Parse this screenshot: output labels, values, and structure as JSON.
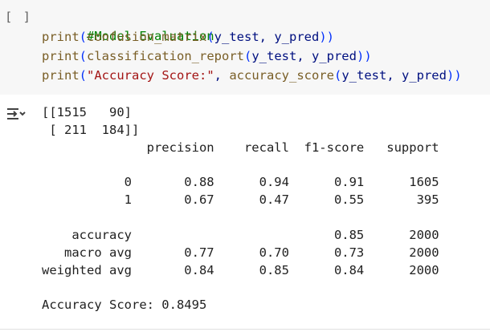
{
  "cell": {
    "run_bracket": "[ ]",
    "code": {
      "comment": "#Model Evaluation",
      "line1": {
        "fn": "print",
        "open": "(",
        "inner_fn": "confusion_matrix",
        "inner_open": "(",
        "args": "y_test, y_pred",
        "close": "))"
      },
      "line2": {
        "fn": "print",
        "open": "(",
        "inner_fn": "classification_report",
        "inner_open": "(",
        "args": "y_test, y_pred",
        "close": "))"
      },
      "line3": {
        "fn": "print",
        "open": "(",
        "string": "\"Accuracy Score:\"",
        "sep": ", ",
        "inner_fn": "accuracy_score",
        "inner_open": "(",
        "args": "y_test, y_pred",
        "close": "))"
      }
    }
  },
  "output": {
    "icon": "output-toggle-icon",
    "lines": [
      "[[1515   90]",
      " [ 211  184]]",
      "              precision    recall  f1-score   support",
      "",
      "           0       0.88      0.94      0.91      1605",
      "           1       0.67      0.47      0.55       395",
      "",
      "    accuracy                           0.85      2000",
      "   macro avg       0.77      0.70      0.73      2000",
      "weighted avg       0.84      0.85      0.84      2000",
      "",
      "Accuracy Score: 0.8495"
    ]
  }
}
